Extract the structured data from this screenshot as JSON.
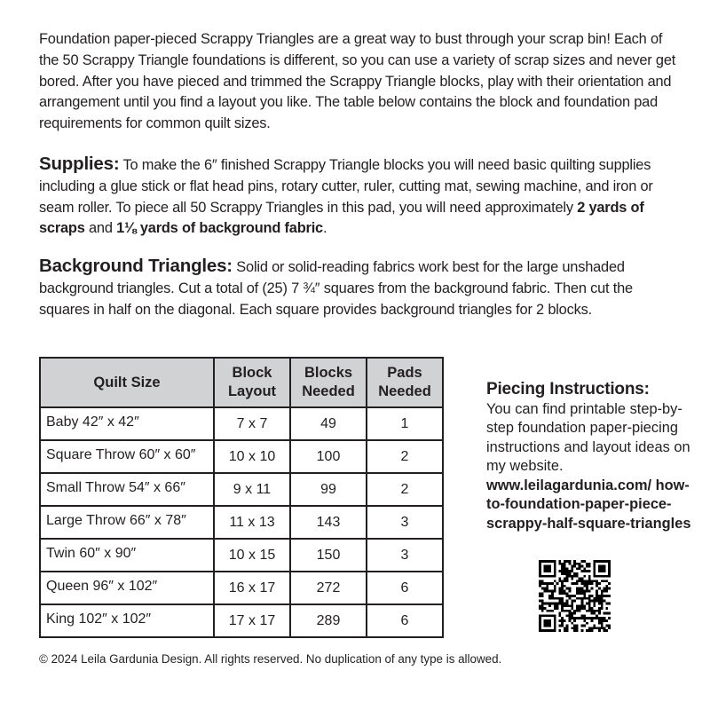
{
  "intro": "Foundation paper-pieced Scrappy Triangles are a great way to bust through your scrap bin! Each of the 50 Scrappy Triangle foundations is different, so you can use a variety of scrap sizes and never get bored. After you have pieced and trimmed the Scrappy Triangle blocks, play with their orientation and arrangement until you find a layout you like. The table below contains the block and foundation pad requirements for common quilt sizes.",
  "supplies": {
    "heading": "Supplies:",
    "text": " To make the 6″ finished Scrappy Triangle blocks you will need basic quilting supplies including a glue stick or flat head pins, rotary cutter, ruler, cutting mat, sewing machine, and iron or seam roller.  To piece all 50 Scrappy Triangles in this pad, you will need approximately ",
    "bold1": "2 yards of scraps",
    "mid": " and ",
    "bold2": "1⅛ yards of background fabric",
    "end": "."
  },
  "background": {
    "heading": "Background Triangles:",
    "text": " Solid or solid-reading fabrics work best for the large unshaded background triangles. Cut a total of (25) 7 ¾″ squares from the background fabric. Then cut the squares in half on the diagonal. Each square provides background triangles for 2 blocks."
  },
  "table": {
    "headers": [
      "Quilt Size",
      "Block Layout",
      "Blocks Needed",
      "Pads Needed"
    ],
    "rows": [
      [
        "Baby 42″ x 42″",
        "7 x 7",
        "49",
        "1"
      ],
      [
        "Square Throw 60″ x 60″",
        "10 x 10",
        "100",
        "2"
      ],
      [
        "Small Throw 54″ x 66″",
        "9 x 11",
        "99",
        "2"
      ],
      [
        "Large Throw 66″ x 78″",
        "11 x 13",
        "143",
        "3"
      ],
      [
        "Twin 60″ x 90″",
        "10 x 15",
        "150",
        "3"
      ],
      [
        "Queen 96″ x 102″",
        "16 x 17",
        "272",
        "6"
      ],
      [
        "King 102″ x 102″",
        "17 x 17",
        "289",
        "6"
      ]
    ],
    "header_bg": "#d1d2d4"
  },
  "piecing": {
    "heading": "Piecing Instructions:",
    "text": "You can find printable step-by-step foundation paper-piecing instructions and layout ideas on my website.",
    "url": "www.leilagardunia.com/ how-to-foundation-paper-piece-scrappy-half-square-triangles"
  },
  "footer": "© 2024 Leila Gardunia Design. All rights reserved. No duplication of any type is allowed."
}
